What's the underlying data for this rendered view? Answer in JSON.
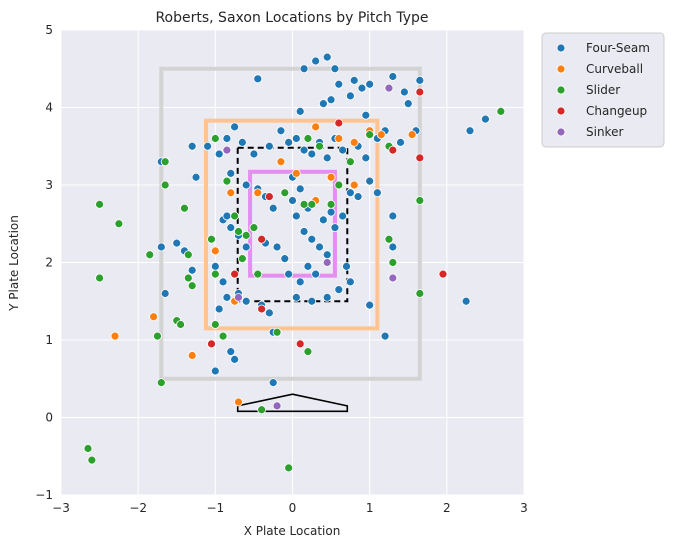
{
  "chart_data": {
    "type": "scatter",
    "title": "Roberts, Saxon Locations by Pitch Type",
    "xlabel": "X Plate Location",
    "ylabel": "Y Plate Location",
    "xlim": [
      -3,
      3
    ],
    "ylim": [
      -1,
      5
    ],
    "xticks": [
      -3,
      -2,
      -1,
      0,
      1,
      2,
      3
    ],
    "yticks": [
      -1,
      0,
      1,
      2,
      3,
      4,
      5
    ],
    "grid": true,
    "legend_position": "outside-top-right",
    "zones": [
      {
        "name": "outer",
        "color": "#d3d3d3",
        "x": [
          -1.7,
          1.65
        ],
        "y": [
          0.5,
          4.5
        ]
      },
      {
        "name": "middle",
        "color": "#ffc48f",
        "x": [
          -1.12,
          1.1
        ],
        "y": [
          1.15,
          3.83
        ]
      },
      {
        "name": "strike",
        "color": "#000000",
        "x": [
          -0.71,
          0.71
        ],
        "y": [
          1.5,
          3.48
        ]
      },
      {
        "name": "inner",
        "color": "#e48ef0",
        "x": [
          -0.55,
          0.55
        ],
        "y": [
          1.83,
          3.17
        ]
      }
    ],
    "plate": [
      [
        -0.71,
        0.08
      ],
      [
        0.71,
        0.08
      ],
      [
        0.71,
        0.15
      ],
      [
        0,
        0.3
      ],
      [
        -0.71,
        0.15
      ]
    ],
    "series": [
      {
        "name": "Four-Seam",
        "color": "#1f77b4",
        "points": [
          [
            0.15,
            4.5
          ],
          [
            0.3,
            4.6
          ],
          [
            0.45,
            4.65
          ],
          [
            0.55,
            4.5
          ],
          [
            0.6,
            4.3
          ],
          [
            -0.45,
            4.37
          ],
          [
            0.4,
            4.05
          ],
          [
            0.8,
            4.35
          ],
          [
            0.9,
            4.25
          ],
          [
            1.0,
            4.3
          ],
          [
            1.3,
            4.4
          ],
          [
            1.45,
            4.2
          ],
          [
            1.5,
            4.05
          ],
          [
            1.65,
            4.35
          ],
          [
            0.1,
            3.95
          ],
          [
            0.5,
            4.1
          ],
          [
            0.75,
            4.15
          ],
          [
            0.95,
            3.9
          ],
          [
            -1.7,
            3.3
          ],
          [
            -1.7,
            2.2
          ],
          [
            -1.5,
            2.25
          ],
          [
            -1.4,
            2.15
          ],
          [
            -1.3,
            1.9
          ],
          [
            -1.65,
            1.6
          ],
          [
            -1.3,
            3.5
          ],
          [
            -1.25,
            3.1
          ],
          [
            -1.1,
            3.5
          ],
          [
            -0.95,
            3.4
          ],
          [
            -0.85,
            3.6
          ],
          [
            -0.75,
            3.75
          ],
          [
            -0.65,
            3.55
          ],
          [
            -0.5,
            3.4
          ],
          [
            -0.3,
            3.5
          ],
          [
            -0.15,
            3.7
          ],
          [
            -0.05,
            3.55
          ],
          [
            0.05,
            3.6
          ],
          [
            0.15,
            3.45
          ],
          [
            0.25,
            3.4
          ],
          [
            0.35,
            3.55
          ],
          [
            0.45,
            3.35
          ],
          [
            0.55,
            3.6
          ],
          [
            0.65,
            3.45
          ],
          [
            0.75,
            3.3
          ],
          [
            0.85,
            3.5
          ],
          [
            0.95,
            3.35
          ],
          [
            1.1,
            3.6
          ],
          [
            1.2,
            3.7
          ],
          [
            1.4,
            3.55
          ],
          [
            1.6,
            3.7
          ],
          [
            -0.8,
            3.15
          ],
          [
            -0.6,
            3.0
          ],
          [
            -0.45,
            2.95
          ],
          [
            -0.35,
            2.85
          ],
          [
            -0.25,
            2.7
          ],
          [
            -0.1,
            2.9
          ],
          [
            0.0,
            2.8
          ],
          [
            0.1,
            2.95
          ],
          [
            0.2,
            2.7
          ],
          [
            0.3,
            2.8
          ],
          [
            0.4,
            2.55
          ],
          [
            0.5,
            2.65
          ],
          [
            0.55,
            2.45
          ],
          [
            0.65,
            2.6
          ],
          [
            0.75,
            2.9
          ],
          [
            0.85,
            2.85
          ],
          [
            1.0,
            3.05
          ],
          [
            1.1,
            2.9
          ],
          [
            1.3,
            2.6
          ],
          [
            -0.9,
            2.55
          ],
          [
            -0.8,
            2.45
          ],
          [
            -0.7,
            2.35
          ],
          [
            -0.6,
            2.2
          ],
          [
            -0.5,
            2.45
          ],
          [
            -0.35,
            2.25
          ],
          [
            -0.2,
            2.2
          ],
          [
            -0.1,
            2.05
          ],
          [
            0.05,
            2.6
          ],
          [
            0.15,
            2.4
          ],
          [
            0.25,
            2.3
          ],
          [
            0.35,
            2.2
          ],
          [
            0.45,
            2.1
          ],
          [
            0.2,
            1.95
          ],
          [
            0.3,
            1.85
          ],
          [
            0.1,
            1.75
          ],
          [
            -0.05,
            1.85
          ],
          [
            0.7,
            1.95
          ],
          [
            0.75,
            1.75
          ],
          [
            0.6,
            1.65
          ],
          [
            0.45,
            1.55
          ],
          [
            0.25,
            1.5
          ],
          [
            0.05,
            1.55
          ],
          [
            -1.0,
            1.95
          ],
          [
            -0.9,
            1.75
          ],
          [
            -0.85,
            1.55
          ],
          [
            -0.7,
            1.6
          ],
          [
            -0.6,
            1.5
          ],
          [
            -0.4,
            1.45
          ],
          [
            -0.3,
            1.35
          ],
          [
            -0.25,
            1.1
          ],
          [
            -0.95,
            1.4
          ],
          [
            -0.8,
            0.85
          ],
          [
            -0.75,
            0.75
          ],
          [
            -0.25,
            0.45
          ],
          [
            -1.0,
            0.6
          ],
          [
            1.2,
            1.05
          ],
          [
            2.25,
            1.5
          ],
          [
            2.3,
            3.7
          ],
          [
            2.5,
            3.85
          ],
          [
            1.3,
            2.2
          ],
          [
            1.0,
            1.45
          ],
          [
            -0.85,
            2.6
          ],
          [
            0.0,
            3.1
          ]
        ]
      },
      {
        "name": "Curveball",
        "color": "#ff7f0e",
        "points": [
          [
            -2.3,
            1.05
          ],
          [
            -1.8,
            1.3
          ],
          [
            -1.3,
            0.8
          ],
          [
            -0.7,
            0.2
          ],
          [
            -0.8,
            2.9
          ],
          [
            -1.0,
            2.15
          ],
          [
            -0.75,
            1.5
          ],
          [
            -0.15,
            3.3
          ],
          [
            0.3,
            3.75
          ],
          [
            0.6,
            3.6
          ],
          [
            0.8,
            3.55
          ],
          [
            1.0,
            3.7
          ],
          [
            1.15,
            3.65
          ],
          [
            1.55,
            3.65
          ],
          [
            0.8,
            3.0
          ],
          [
            0.05,
            3.15
          ],
          [
            0.3,
            2.8
          ],
          [
            0.5,
            3.1
          ],
          [
            -0.45,
            2.9
          ]
        ]
      },
      {
        "name": "Slider",
        "color": "#2ca02c",
        "points": [
          [
            2.7,
            3.95
          ],
          [
            -2.5,
            2.75
          ],
          [
            -2.25,
            2.5
          ],
          [
            -2.5,
            1.8
          ],
          [
            -1.85,
            2.1
          ],
          [
            -1.65,
            3.3
          ],
          [
            -1.65,
            3.0
          ],
          [
            -1.4,
            2.7
          ],
          [
            -1.35,
            2.1
          ],
          [
            -1.35,
            1.8
          ],
          [
            -1.3,
            1.7
          ],
          [
            -1.5,
            1.25
          ],
          [
            -1.45,
            1.2
          ],
          [
            -1.75,
            1.05
          ],
          [
            -1.7,
            0.45
          ],
          [
            -2.65,
            -0.4
          ],
          [
            -2.6,
            -0.55
          ],
          [
            -1.0,
            1.2
          ],
          [
            -0.9,
            1.05
          ],
          [
            -1.05,
            0.95
          ],
          [
            -1.0,
            1.85
          ],
          [
            -1.05,
            2.3
          ],
          [
            -1.0,
            3.6
          ],
          [
            -0.85,
            3.05
          ],
          [
            -0.75,
            2.6
          ],
          [
            -0.7,
            2.4
          ],
          [
            -0.6,
            2.35
          ],
          [
            -0.5,
            2.45
          ],
          [
            -0.65,
            2.05
          ],
          [
            -0.45,
            1.85
          ],
          [
            -0.2,
            1.1
          ],
          [
            0.2,
            0.85
          ],
          [
            0.2,
            3.6
          ],
          [
            0.35,
            3.5
          ],
          [
            0.15,
            2.75
          ],
          [
            0.25,
            2.75
          ],
          [
            0.5,
            2.75
          ],
          [
            0.6,
            3.0
          ],
          [
            0.75,
            3.3
          ],
          [
            -0.1,
            2.9
          ],
          [
            1.0,
            3.65
          ],
          [
            1.25,
            3.5
          ],
          [
            1.25,
            2.3
          ],
          [
            1.3,
            2.0
          ],
          [
            1.65,
            2.8
          ],
          [
            1.65,
            1.6
          ],
          [
            -0.4,
            0.1
          ],
          [
            -0.05,
            -0.65
          ]
        ]
      },
      {
        "name": "Changeup",
        "color": "#d62728",
        "points": [
          [
            1.65,
            4.2
          ],
          [
            0.6,
            3.8
          ],
          [
            1.3,
            3.45
          ],
          [
            1.65,
            3.35
          ],
          [
            -0.3,
            2.85
          ],
          [
            -0.75,
            1.85
          ],
          [
            -0.4,
            2.3
          ],
          [
            -1.05,
            0.95
          ],
          [
            0.1,
            0.95
          ],
          [
            1.95,
            1.85
          ],
          [
            -0.4,
            1.4
          ]
        ]
      },
      {
        "name": "Sinker",
        "color": "#9467bd",
        "points": [
          [
            1.25,
            4.25
          ],
          [
            -0.85,
            3.45
          ],
          [
            0.45,
            2.0
          ],
          [
            1.3,
            1.8
          ],
          [
            -0.7,
            1.55
          ],
          [
            -0.2,
            0.15
          ]
        ]
      }
    ]
  }
}
